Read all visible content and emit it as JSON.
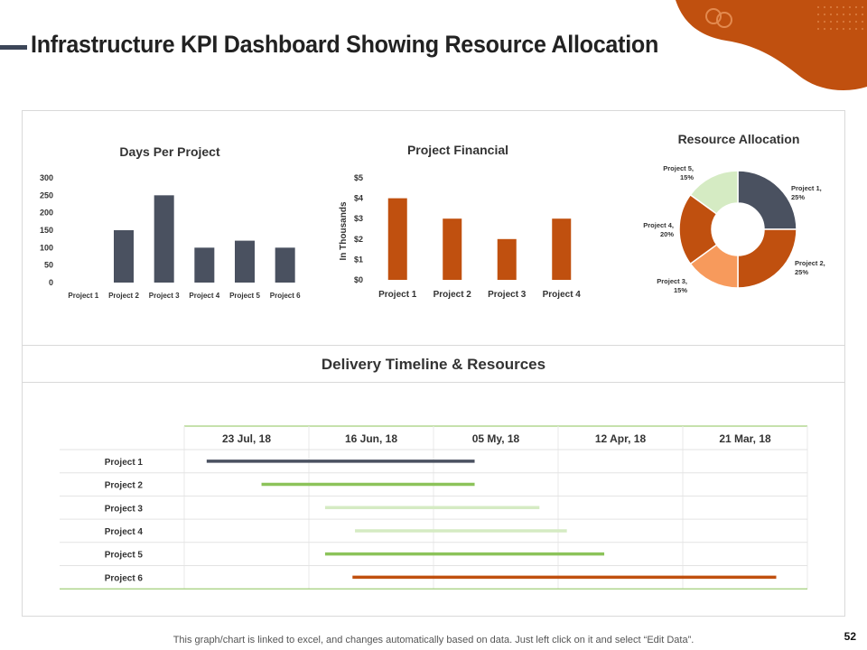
{
  "page": {
    "title": "Infrastructure KPI Dashboard Showing Resource Allocation",
    "footnote": "This graph/chart is linked to excel, and changes automatically based on data. Just left click on it and select “Edit Data”.",
    "page_number": "52",
    "accent_color": "#c0500f"
  },
  "chart_data": [
    {
      "id": "days",
      "type": "bar",
      "title": "Days Per Project",
      "categories": [
        "Project 1",
        "Project 2",
        "Project 3",
        "Project 4",
        "Project 5",
        "Project 6"
      ],
      "values": [
        0,
        150,
        250,
        100,
        120,
        100
      ],
      "ylim": [
        0,
        300
      ],
      "yticks": [
        "0",
        "50",
        "100",
        "150",
        "200",
        "250",
        "300"
      ],
      "color": "#4a5160",
      "grid": false
    },
    {
      "id": "financial",
      "type": "bar",
      "title": "Project Financial",
      "ylabel": "In Thousands",
      "categories": [
        "Project 1",
        "Project 2",
        "Project 3",
        "Project 4"
      ],
      "values": [
        4,
        3,
        2,
        3
      ],
      "ylim": [
        0,
        5
      ],
      "yticks": [
        "$0",
        "$1",
        "$2",
        "$3",
        "$4",
        "$5"
      ],
      "color": "#c0500f",
      "grid": false
    },
    {
      "id": "allocation",
      "type": "pie",
      "title": "Resource Allocation",
      "slices": [
        {
          "name": "Project 1",
          "pct_label": "25%",
          "value": 25,
          "color": "#4a5160"
        },
        {
          "name": "Project 2",
          "pct_label": "25%",
          "value": 25,
          "color": "#c0500f"
        },
        {
          "name": "Project 3",
          "pct_label": "15%",
          "value": 15,
          "color": "#f79a5c"
        },
        {
          "name": "Project 4",
          "pct_label": "20%",
          "value": 20,
          "color": "#c0500f"
        },
        {
          "name": "Project 5",
          "pct_label": "15%",
          "value": 15,
          "color": "#d5ebc3"
        }
      ]
    },
    {
      "id": "timeline",
      "type": "gantt",
      "title": "Delivery Timeline & Resources",
      "columns": [
        "23 Jul, 18",
        "16 Jun, 18",
        "05 My, 18",
        "12 Apr, 18",
        "21 Mar, 18"
      ],
      "rows": [
        {
          "name": "Project 1",
          "start": 0.18,
          "end": 2.33,
          "color": "#4a5160"
        },
        {
          "name": "Project 2",
          "start": 0.62,
          "end": 2.33,
          "color": "#8cc35a"
        },
        {
          "name": "Project 3",
          "start": 1.13,
          "end": 2.85,
          "color": "#d5ebc3"
        },
        {
          "name": "Project 4",
          "start": 1.37,
          "end": 3.07,
          "color": "#d5ebc3"
        },
        {
          "name": "Project 5",
          "start": 1.13,
          "end": 3.37,
          "color": "#8cc35a"
        },
        {
          "name": "Project 6",
          "start": 1.35,
          "end": 4.75,
          "color": "#c0500f"
        }
      ]
    }
  ]
}
